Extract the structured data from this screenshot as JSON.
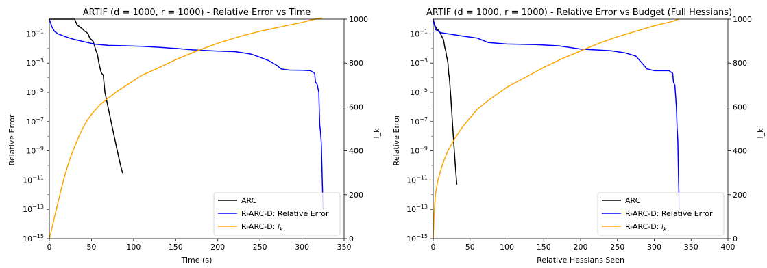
{
  "chart_data": [
    {
      "type": "line",
      "title": "ARTIF (d = 1000, r = 1000) - Relative Error vs Time",
      "xlabel": "Time (s)",
      "ylabel": "Relative Error",
      "ylabel_right": "l_k",
      "xlim": [
        0,
        350
      ],
      "ylim": [
        1e-15,
        1
      ],
      "yscale": "log",
      "ylim_right": [
        0,
        1000
      ],
      "x_ticks": [
        0,
        50,
        100,
        150,
        200,
        250,
        300,
        350
      ],
      "y_ticks_exp": [
        -15,
        -13,
        -11,
        -9,
        -7,
        -5,
        -3,
        -1
      ],
      "y_right_ticks": [
        0,
        200,
        400,
        600,
        800,
        1000
      ],
      "legend": "lower-right",
      "series": [
        {
          "name": "ARC",
          "axis": "left",
          "color": "#000000",
          "points": [
            [
              0,
              1
            ],
            [
              30,
              1
            ],
            [
              33,
              0.4
            ],
            [
              38,
              0.25
            ],
            [
              40,
              0.2
            ],
            [
              42,
              0.15
            ],
            [
              44,
              0.13
            ],
            [
              46,
              0.1
            ],
            [
              48,
              0.05
            ],
            [
              50,
              0.04
            ],
            [
              52,
              0.03
            ],
            [
              53,
              0.02
            ],
            [
              55,
              0.008
            ],
            [
              57,
              0.004
            ],
            [
              59,
              0.0009
            ],
            [
              61,
              0.0003
            ],
            [
              62,
              0.0002
            ],
            [
              64,
              0.00015
            ],
            [
              66,
              1e-05
            ],
            [
              70,
              8e-07
            ],
            [
              75,
              3.5e-08
            ],
            [
              80,
              1.5e-09
            ],
            [
              85,
              8e-11
            ],
            [
              87,
              3e-11
            ]
          ]
        },
        {
          "name": "R-ARC-D: Relative Error",
          "axis": "left",
          "color": "#0000ff",
          "points": [
            [
              0,
              1
            ],
            [
              3,
              0.3
            ],
            [
              6,
              0.15
            ],
            [
              10,
              0.1
            ],
            [
              20,
              0.06
            ],
            [
              30,
              0.04
            ],
            [
              40,
              0.03
            ],
            [
              50,
              0.022
            ],
            [
              55,
              0.019
            ],
            [
              70,
              0.016
            ],
            [
              90,
              0.015
            ],
            [
              110,
              0.014
            ],
            [
              130,
              0.012
            ],
            [
              150,
              0.01
            ],
            [
              170,
              0.008
            ],
            [
              190,
              0.007
            ],
            [
              200,
              0.0066
            ],
            [
              220,
              0.006
            ],
            [
              230,
              0.005
            ],
            [
              240,
              0.004
            ],
            [
              250,
              0.0025
            ],
            [
              260,
              0.0015
            ],
            [
              270,
              0.0007
            ],
            [
              275,
              0.0004
            ],
            [
              285,
              0.00033
            ],
            [
              300,
              0.00032
            ],
            [
              310,
              0.0003
            ],
            [
              315,
              0.0002
            ],
            [
              316,
              5e-05
            ],
            [
              318,
              3.5e-05
            ],
            [
              320,
              1e-05
            ],
            [
              321,
              6e-08
            ],
            [
              322,
              2e-08
            ],
            [
              323,
              3e-09
            ],
            [
              324,
              1e-11
            ],
            [
              325,
              1e-13
            ]
          ]
        },
        {
          "name": "R-ARC-D: l_k",
          "axis": "right",
          "color": "#ffa500",
          "points": [
            [
              0,
              0
            ],
            [
              2,
              30
            ],
            [
              5,
              80
            ],
            [
              10,
              160
            ],
            [
              15,
              240
            ],
            [
              20,
              310
            ],
            [
              25,
              370
            ],
            [
              30,
              420
            ],
            [
              35,
              465
            ],
            [
              40,
              505
            ],
            [
              45,
              540
            ],
            [
              50,
              565
            ],
            [
              60,
              610
            ],
            [
              70,
              640
            ],
            [
              80,
              670
            ],
            [
              90,
              695
            ],
            [
              100,
              720
            ],
            [
              110,
              745
            ],
            [
              125,
              770
            ],
            [
              150,
              815
            ],
            [
              175,
              855
            ],
            [
              200,
              890
            ],
            [
              225,
              920
            ],
            [
              250,
              945
            ],
            [
              275,
              965
            ],
            [
              300,
              985
            ],
            [
              315,
              1000
            ],
            [
              324,
              1005
            ]
          ]
        }
      ]
    },
    {
      "type": "line",
      "title": "ARTIF (d = 1000, r = 1000) - Relative Error vs Budget (Full Hessians)",
      "xlabel": "Relative Hessians Seen",
      "ylabel": "Relative Error",
      "ylabel_right": "l_k",
      "xlim": [
        0,
        400
      ],
      "ylim": [
        1e-15,
        1
      ],
      "yscale": "log",
      "ylim_right": [
        0,
        1000
      ],
      "x_ticks": [
        0,
        50,
        100,
        150,
        200,
        250,
        300,
        350,
        400
      ],
      "y_ticks_exp": [
        -15,
        -13,
        -11,
        -9,
        -7,
        -5,
        -3,
        -1
      ],
      "y_right_ticks": [
        0,
        200,
        400,
        600,
        800,
        1000
      ],
      "legend": "lower-right",
      "series": [
        {
          "name": "ARC",
          "axis": "left",
          "color": "#000000",
          "points": [
            [
              0,
              1
            ],
            [
              2,
              0.4
            ],
            [
              4,
              0.25
            ],
            [
              6,
              0.2
            ],
            [
              8,
              0.15
            ],
            [
              10,
              0.1
            ],
            [
              12,
              0.06
            ],
            [
              14,
              0.04
            ],
            [
              15,
              0.02
            ],
            [
              16,
              0.01
            ],
            [
              17,
              0.007
            ],
            [
              18,
              0.003
            ],
            [
              19,
              0.002
            ],
            [
              20,
              0.001
            ],
            [
              21,
              0.0002
            ],
            [
              22,
              0.0001
            ],
            [
              23,
              2e-05
            ],
            [
              24,
              4e-06
            ],
            [
              26,
              1e-07
            ],
            [
              28,
              3e-09
            ],
            [
              30,
              1e-10
            ],
            [
              32,
              5e-12
            ]
          ]
        },
        {
          "name": "R-ARC-D: Relative Error",
          "axis": "left",
          "color": "#0000ff",
          "points": [
            [
              0,
              1
            ],
            [
              3,
              0.2
            ],
            [
              10,
              0.12
            ],
            [
              20,
              0.1
            ],
            [
              40,
              0.07
            ],
            [
              60,
              0.05
            ],
            [
              75,
              0.025
            ],
            [
              100,
              0.02
            ],
            [
              140,
              0.018
            ],
            [
              170,
              0.015
            ],
            [
              200,
              0.009
            ],
            [
              240,
              0.007
            ],
            [
              260,
              0.005
            ],
            [
              275,
              0.003
            ],
            [
              285,
              0.0008
            ],
            [
              290,
              0.0004
            ],
            [
              300,
              0.0003
            ],
            [
              320,
              0.0003
            ],
            [
              325,
              0.0002
            ],
            [
              326,
              5e-05
            ],
            [
              328,
              3e-05
            ],
            [
              330,
              1e-06
            ],
            [
              331,
              4e-08
            ],
            [
              332,
              5e-09
            ],
            [
              333,
              1e-11
            ],
            [
              334,
              1e-13
            ]
          ]
        },
        {
          "name": "R-ARC-D: l_k",
          "axis": "right",
          "color": "#ffa500",
          "points": [
            [
              0,
              0
            ],
            [
              1,
              100
            ],
            [
              3,
              200
            ],
            [
              6,
              260
            ],
            [
              10,
              310
            ],
            [
              15,
              360
            ],
            [
              20,
              400
            ],
            [
              30,
              460
            ],
            [
              40,
              510
            ],
            [
              50,
              550
            ],
            [
              60,
              590
            ],
            [
              75,
              630
            ],
            [
              100,
              690
            ],
            [
              125,
              735
            ],
            [
              150,
              780
            ],
            [
              175,
              820
            ],
            [
              200,
              855
            ],
            [
              225,
              890
            ],
            [
              250,
              920
            ],
            [
              275,
              945
            ],
            [
              300,
              970
            ],
            [
              325,
              990
            ],
            [
              333,
              1000
            ]
          ]
        }
      ]
    }
  ],
  "legend_labels": [
    "ARC",
    "R-ARC-D: Relative Error",
    "R-ARC-D: "
  ],
  "legend_lk_symbol": "l",
  "legend_lk_sub": "k",
  "right_axis_label": "l_k"
}
